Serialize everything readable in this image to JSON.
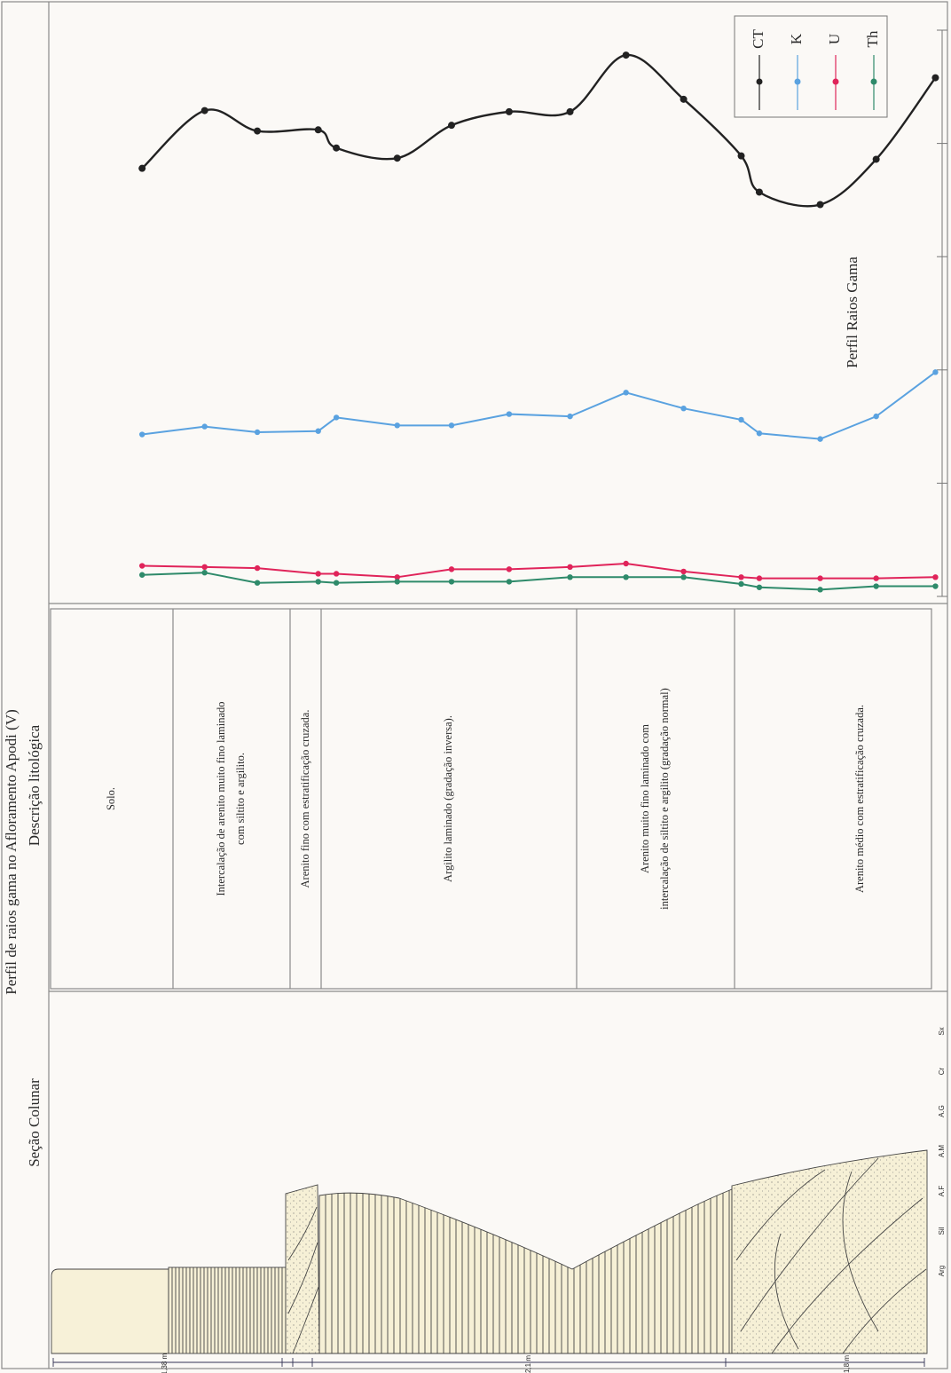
{
  "title": "Perfil de raios gama no Afloramento Apodi (V)",
  "columnar_section": {
    "header": "Seção Colunar",
    "grain_sizes": [
      "Sx",
      "Cr",
      "A.G",
      "A.M",
      "A.F",
      "Sil",
      "Arg"
    ],
    "thickness_labels": [
      "1,38 m",
      "2,1 m",
      "1,8 m"
    ]
  },
  "lithology": {
    "header": "Descrição litológica",
    "units": [
      [
        "Solo."
      ],
      [
        "Intercalação de arenito muito fino laminado",
        "com siltito e argilito."
      ],
      [
        "Arenito fino com estratificação cruzada."
      ],
      [
        "Argilito laminado (gradação inversa)."
      ],
      [
        "Arenito muito fino laminado com",
        "intercalação de siltito e argilito (gradação normal)"
      ],
      [
        "Arenito médio com estratificação cruzada."
      ]
    ]
  },
  "chart_data": {
    "type": "line",
    "title": "Perfil Raios Gama",
    "x": [
      0.54,
      0.92,
      1.24,
      1.61,
      1.72,
      2.09,
      2.42,
      2.77,
      3.14,
      3.48,
      3.83,
      4.18,
      4.29,
      4.66,
      5.0,
      5.36
    ],
    "xlim": [
      0,
      5.39
    ],
    "ylim": [
      0,
      5.2
    ],
    "yticks": [
      0,
      1,
      2,
      3,
      4,
      5
    ],
    "legend": "upper right",
    "series": [
      {
        "name": "CT",
        "color": "#222222",
        "values": [
          3.78,
          4.29,
          4.11,
          4.12,
          3.96,
          3.87,
          4.16,
          4.28,
          4.28,
          4.78,
          4.39,
          3.89,
          3.57,
          3.46,
          3.86,
          4.58
        ]
      },
      {
        "name": "K",
        "color": "#5aa2e0",
        "values": [
          1.43,
          1.5,
          1.45,
          1.46,
          1.58,
          1.51,
          1.51,
          1.61,
          1.59,
          1.8,
          1.66,
          1.56,
          1.44,
          1.39,
          1.59,
          1.98
        ]
      },
      {
        "name": "U",
        "color": "#e0245a",
        "values": [
          0.27,
          0.26,
          0.25,
          0.2,
          0.2,
          0.17,
          0.24,
          0.24,
          0.26,
          0.29,
          0.22,
          0.17,
          0.16,
          0.16,
          0.16,
          0.17
        ]
      },
      {
        "name": "Th",
        "color": "#2e8a6a",
        "values": [
          0.19,
          0.21,
          0.12,
          0.13,
          0.12,
          0.13,
          0.13,
          0.13,
          0.17,
          0.17,
          0.17,
          0.11,
          0.08,
          0.06,
          0.09,
          0.09
        ]
      }
    ]
  }
}
